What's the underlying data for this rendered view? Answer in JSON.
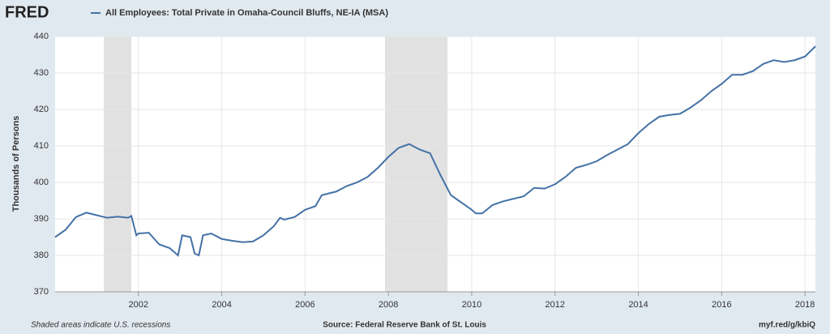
{
  "logo": "FRED",
  "chart_data": {
    "type": "line",
    "title": "All Employees: Total Private in Omaha-Council Bluffs, NE-IA (MSA)",
    "y_label": "Thousands of Persons",
    "recession_note": "Shaded areas indicate U.S. recessions",
    "source": "Source: Federal Reserve Bank of St. Louis",
    "link": "myf.red/g/kbiQ",
    "xlim": [
      2000,
      2018.25
    ],
    "xticks": [
      2002,
      2004,
      2006,
      2008,
      2010,
      2012,
      2014,
      2016,
      2018
    ],
    "ylim": [
      370,
      440
    ],
    "yticks": [
      370,
      380,
      390,
      400,
      410,
      420,
      430,
      440
    ],
    "grid": true,
    "recessions": [
      [
        2001.17,
        2001.83
      ],
      [
        2007.92,
        2009.42
      ]
    ],
    "series": [
      {
        "name": "All Employees: Total Private in Omaha-Council Bluffs, NE-IA (MSA)",
        "color": "#4572a7",
        "x": [
          2000,
          2000.25,
          2000.5,
          2000.75,
          2001,
          2001.25,
          2001.5,
          2001.75,
          2001.83,
          2001.95,
          2002,
          2002.25,
          2002.5,
          2002.75,
          2002.95,
          2003.05,
          2003.25,
          2003.35,
          2003.45,
          2003.55,
          2003.75,
          2004,
          2004.25,
          2004.5,
          2004.75,
          2005,
          2005.25,
          2005.4,
          2005.5,
          2005.75,
          2006,
          2006.25,
          2006.4,
          2006.75,
          2007,
          2007.25,
          2007.5,
          2007.75,
          2008,
          2008.25,
          2008.5,
          2008.75,
          2009,
          2009.25,
          2009.5,
          2009.75,
          2010,
          2010.1,
          2010.25,
          2010.5,
          2010.75,
          2011,
          2011.25,
          2011.5,
          2011.75,
          2012,
          2012.25,
          2012.5,
          2012.75,
          2013,
          2013.25,
          2013.5,
          2013.75,
          2014,
          2014.25,
          2014.5,
          2014.75,
          2015,
          2015.25,
          2015.5,
          2015.75,
          2016,
          2016.25,
          2016.5,
          2016.75,
          2017,
          2017.25,
          2017.5,
          2017.75,
          2018,
          2018.25
        ],
        "values": [
          385,
          387,
          390.5,
          391.7,
          391,
          390.3,
          390.6,
          390.3,
          390.8,
          385.5,
          386,
          386.2,
          383,
          382,
          380,
          385.5,
          385,
          380.5,
          380,
          385.5,
          386,
          384.5,
          384,
          383.6,
          383.8,
          385.5,
          388,
          390.3,
          389.8,
          390.5,
          392.5,
          393.5,
          396.5,
          397.5,
          399,
          400,
          401.5,
          404,
          407,
          409.5,
          410.5,
          409,
          408,
          402,
          396.5,
          394.5,
          392.5,
          391.5,
          391.5,
          393.8,
          394.8,
          395.5,
          396.2,
          398.5,
          398.3,
          399.5,
          401.5,
          404,
          404.8,
          405.8,
          407.5,
          409,
          410.5,
          413.5,
          416,
          418,
          418.5,
          418.8,
          420.5,
          422.5,
          425,
          427,
          429.5,
          429.5,
          430.5,
          432.5,
          433.5,
          433,
          433.5,
          434.5,
          437.3
        ]
      }
    ]
  }
}
